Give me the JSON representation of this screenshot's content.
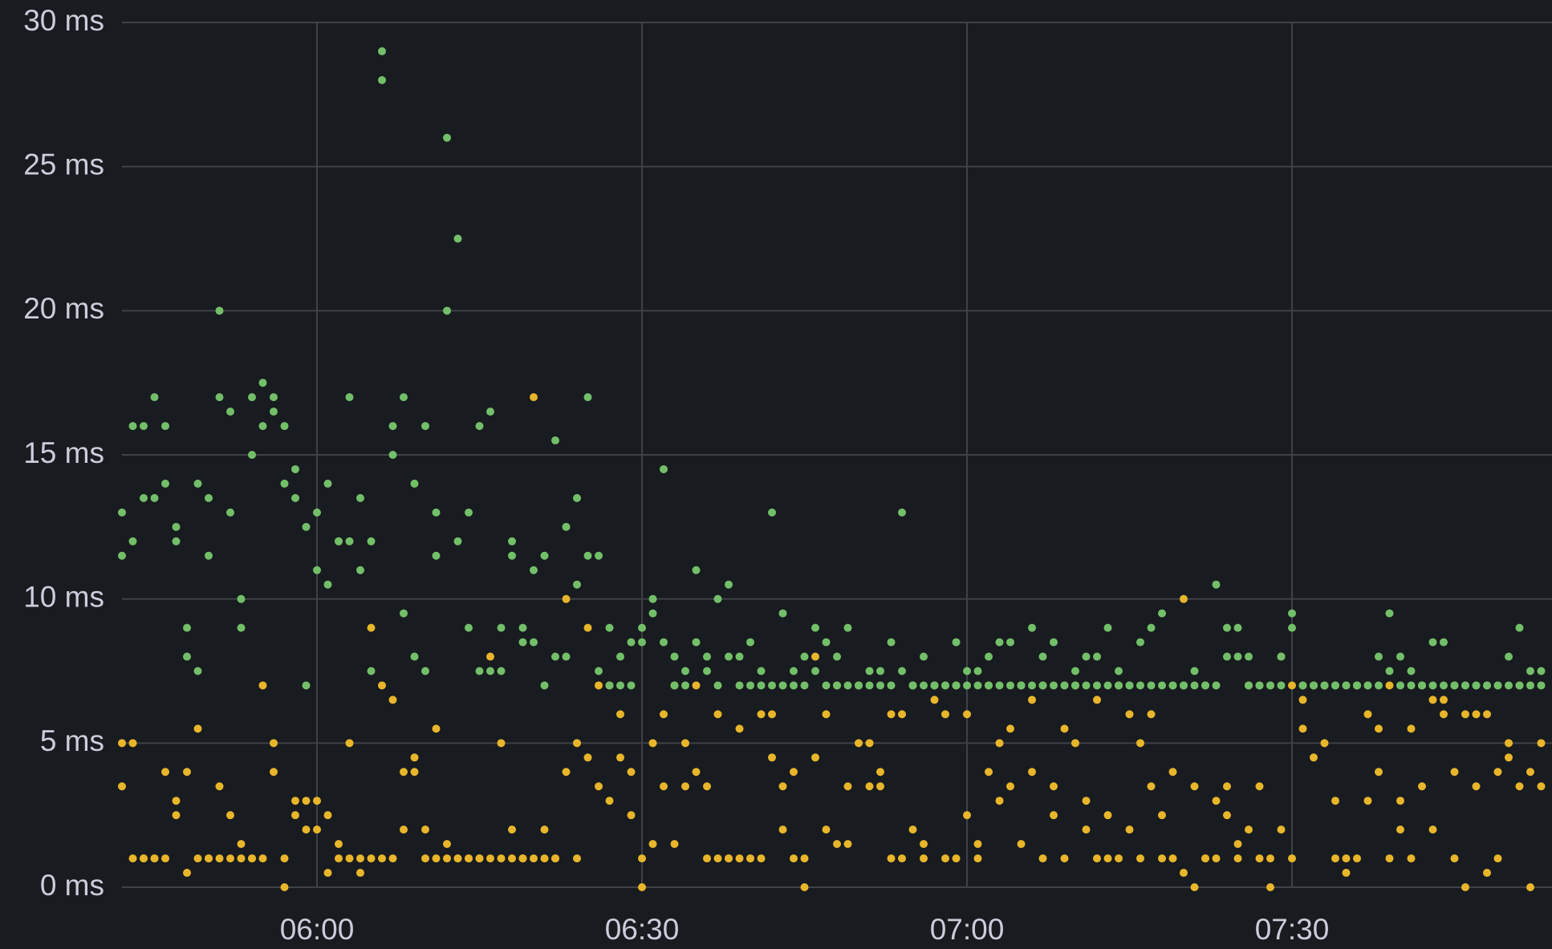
{
  "chart_data": {
    "type": "scatter",
    "xlim": [
      "05:42",
      "07:54"
    ],
    "xticks": [
      "06:00",
      "06:30",
      "07:00",
      "07:30"
    ],
    "ylim": [
      0,
      30
    ],
    "yticks": [
      {
        "value": 0,
        "label": "0 ms"
      },
      {
        "value": 5,
        "label": "5 ms"
      },
      {
        "value": 10,
        "label": "10 ms"
      },
      {
        "value": 15,
        "label": "15 ms"
      },
      {
        "value": 20,
        "label": "20 ms"
      },
      {
        "value": 25,
        "label": "25 ms"
      },
      {
        "value": 30,
        "label": "30 ms"
      }
    ],
    "grid": true,
    "series": [
      {
        "color": "#e8b52b",
        "x": [
          "05:42",
          "05:42",
          "05:43",
          "05:43",
          "05:44",
          "05:44",
          "05:45",
          "05:45",
          "05:46",
          "05:46",
          "05:47",
          "05:47",
          "05:48",
          "05:48",
          "05:49",
          "05:49",
          "05:50",
          "05:50",
          "05:51",
          "05:51",
          "05:52",
          "05:52",
          "05:53",
          "05:53",
          "05:54",
          "05:54",
          "05:55",
          "05:55",
          "05:56",
          "05:56",
          "05:57",
          "05:57",
          "05:58",
          "05:58",
          "05:59",
          "05:59",
          "06:00",
          "06:00",
          "06:01",
          "06:01",
          "06:02",
          "06:02",
          "06:03",
          "06:03",
          "06:04",
          "06:04",
          "06:05",
          "06:05",
          "06:06",
          "06:06",
          "06:07",
          "06:07",
          "06:08",
          "06:08",
          "06:09",
          "06:09",
          "06:10",
          "06:10",
          "06:11",
          "06:11",
          "06:12",
          "06:12",
          "06:13",
          "06:13",
          "06:14",
          "06:14",
          "06:15",
          "06:15",
          "06:16",
          "06:16",
          "06:17",
          "06:17",
          "06:18",
          "06:18",
          "06:19",
          "06:19",
          "06:20",
          "06:20",
          "06:21",
          "06:21",
          "06:22",
          "06:22",
          "06:23",
          "06:23",
          "06:24",
          "06:24",
          "06:25",
          "06:25",
          "06:26",
          "06:26",
          "06:27",
          "06:27",
          "06:28",
          "06:28",
          "06:29",
          "06:29",
          "06:30",
          "06:30",
          "06:31",
          "06:31",
          "06:32",
          "06:32",
          "06:33",
          "06:33",
          "06:34",
          "06:34",
          "06:35",
          "06:35",
          "06:36",
          "06:36",
          "06:37",
          "06:37",
          "06:38",
          "06:38",
          "06:39",
          "06:39",
          "06:40",
          "06:40",
          "06:41",
          "06:41",
          "06:42",
          "06:42",
          "06:43",
          "06:43",
          "06:44",
          "06:44",
          "06:45",
          "06:45",
          "06:46",
          "06:46",
          "06:47",
          "06:47",
          "06:48",
          "06:48",
          "06:49",
          "06:49",
          "06:50",
          "06:50",
          "06:51",
          "06:51",
          "06:52",
          "06:52",
          "06:53",
          "06:53",
          "06:54",
          "06:54",
          "06:55",
          "06:55",
          "06:56",
          "06:56",
          "06:57",
          "06:57",
          "06:58",
          "06:58",
          "06:59",
          "06:59",
          "07:00",
          "07:00",
          "07:01",
          "07:01",
          "07:02",
          "07:02",
          "07:03",
          "07:03",
          "07:04",
          "07:04",
          "07:05",
          "07:05",
          "07:06",
          "07:06",
          "07:07",
          "07:07",
          "07:08",
          "07:08",
          "07:09",
          "07:09",
          "07:10",
          "07:10",
          "07:11",
          "07:11",
          "07:12",
          "07:12",
          "07:13",
          "07:13",
          "07:14",
          "07:14",
          "07:15",
          "07:15",
          "07:16",
          "07:16",
          "07:17",
          "07:17",
          "07:18",
          "07:18",
          "07:19",
          "07:19",
          "07:20",
          "07:20",
          "07:21",
          "07:21",
          "07:22",
          "07:22",
          "07:23",
          "07:23",
          "07:24",
          "07:24",
          "07:25",
          "07:25",
          "07:26",
          "07:26",
          "07:27",
          "07:27",
          "07:28",
          "07:28",
          "07:29",
          "07:29",
          "07:30",
          "07:30",
          "07:31",
          "07:31",
          "07:32",
          "07:32",
          "07:33",
          "07:33",
          "07:34",
          "07:34",
          "07:35",
          "07:35",
          "07:36",
          "07:36",
          "07:37",
          "07:37",
          "07:38",
          "07:38",
          "07:39",
          "07:39",
          "07:40",
          "07:40",
          "07:41",
          "07:41",
          "07:42",
          "07:42",
          "07:43",
          "07:43",
          "07:44",
          "07:44",
          "07:45",
          "07:45",
          "07:46",
          "07:46",
          "07:47",
          "07:47",
          "07:48",
          "07:48",
          "07:49",
          "07:49",
          "07:50",
          "07:50",
          "07:51",
          "07:51",
          "07:52",
          "07:52",
          "07:53",
          "07:53"
        ],
        "values": [
          5,
          3.5,
          5,
          1,
          1,
          1,
          1,
          1,
          4,
          1,
          3,
          2.5,
          0.5,
          4,
          1,
          5.5,
          1,
          1,
          3.5,
          1,
          2.5,
          1,
          1.5,
          1,
          1,
          1,
          7,
          1,
          4,
          5,
          1,
          0,
          3,
          2.5,
          3,
          2,
          2,
          3,
          0.5,
          2.5,
          1.5,
          1,
          5,
          1,
          0.5,
          1,
          1,
          9,
          1,
          7,
          1,
          6.5,
          4,
          2,
          4.5,
          4,
          1,
          2,
          5.5,
          1,
          1.5,
          1,
          1,
          1,
          1,
          1,
          1,
          1,
          1,
          8,
          5,
          1,
          1,
          2,
          1,
          1,
          17,
          1,
          1,
          2,
          1,
          1,
          10,
          4,
          1,
          5,
          9,
          4.5,
          7,
          3.5,
          7,
          3,
          6,
          4.5,
          4,
          2.5,
          0,
          1,
          5,
          1.5,
          6,
          3.5,
          7,
          1.5,
          5,
          3.5,
          7,
          4,
          3.5,
          1,
          6,
          1,
          1,
          1,
          5.5,
          1,
          1,
          1,
          1,
          6,
          4.5,
          6,
          3.5,
          2,
          1,
          4,
          0,
          1,
          8,
          4.5,
          6,
          2,
          7,
          1.5,
          3.5,
          1.5,
          7,
          5,
          5,
          3.5,
          3.5,
          4,
          1,
          6,
          1,
          6,
          7,
          2,
          1,
          1.5,
          6.5,
          7,
          1,
          6,
          7,
          1,
          2.5,
          6,
          1.5,
          1,
          7,
          4,
          5,
          3,
          5.5,
          3.5,
          7,
          1.5,
          6.5,
          4,
          1,
          7,
          3.5,
          2.5,
          1,
          5.5,
          7,
          5,
          2,
          3,
          1,
          6.5,
          1,
          2.5,
          7,
          1,
          6,
          2,
          5,
          1,
          6,
          3.5,
          2.5,
          1,
          4,
          1,
          0.5,
          10,
          0,
          3.5,
          1,
          1,
          3,
          1,
          3.5,
          2.5,
          1,
          1.5,
          7,
          2,
          3.5,
          1,
          1,
          0,
          8,
          2,
          7,
          1,
          6.5,
          5.5,
          4.5,
          7,
          7,
          5,
          1,
          3,
          1,
          0.5,
          7,
          1,
          6,
          3,
          5.5,
          4,
          7,
          1,
          2,
          3,
          1,
          5.5,
          7,
          3.5,
          6.5,
          2,
          6.5,
          6,
          1,
          4,
          0,
          6,
          6,
          3.5,
          6,
          0.5,
          4,
          1,
          5,
          4.5,
          7,
          3.5,
          4,
          0,
          3.5,
          5
        ]
      },
      {
        "color": "#73bf69",
        "x": [
          "05:42",
          "05:42",
          "05:43",
          "05:43",
          "05:44",
          "05:44",
          "05:45",
          "05:45",
          "05:46",
          "05:46",
          "05:47",
          "05:47",
          "05:48",
          "05:48",
          "05:49",
          "05:49",
          "05:50",
          "05:50",
          "05:51",
          "05:51",
          "05:52",
          "05:52",
          "05:53",
          "05:53",
          "05:54",
          "05:54",
          "05:55",
          "05:55",
          "05:56",
          "05:56",
          "05:57",
          "05:57",
          "05:58",
          "05:58",
          "05:59",
          "05:59",
          "06:00",
          "06:00",
          "06:01",
          "06:01",
          "06:02",
          "06:02",
          "06:03",
          "06:03",
          "06:04",
          "06:04",
          "06:05",
          "06:05",
          "06:06",
          "06:06",
          "06:07",
          "06:07",
          "06:08",
          "06:08",
          "06:09",
          "06:09",
          "06:10",
          "06:10",
          "06:11",
          "06:11",
          "06:12",
          "06:12",
          "06:13",
          "06:13",
          "06:14",
          "06:14",
          "06:15",
          "06:15",
          "06:16",
          "06:16",
          "06:17",
          "06:17",
          "06:18",
          "06:18",
          "06:19",
          "06:19",
          "06:20",
          "06:20",
          "06:21",
          "06:21",
          "06:22",
          "06:22",
          "06:23",
          "06:23",
          "06:24",
          "06:24",
          "06:25",
          "06:25",
          "06:26",
          "06:26",
          "06:27",
          "06:27",
          "06:28",
          "06:28",
          "06:29",
          "06:29",
          "06:30",
          "06:30",
          "06:31",
          "06:31",
          "06:32",
          "06:32",
          "06:33",
          "06:33",
          "06:34",
          "06:34",
          "06:35",
          "06:35",
          "06:36",
          "06:36",
          "06:37",
          "06:37",
          "06:38",
          "06:38",
          "06:39",
          "06:39",
          "06:40",
          "06:40",
          "06:41",
          "06:41",
          "06:42",
          "06:42",
          "06:43",
          "06:43",
          "06:44",
          "06:44",
          "06:45",
          "06:45",
          "06:46",
          "06:46",
          "06:47",
          "06:47",
          "06:48",
          "06:48",
          "06:49",
          "06:49",
          "06:50",
          "06:50",
          "06:51",
          "06:51",
          "06:52",
          "06:52",
          "06:53",
          "06:53",
          "06:54",
          "06:54",
          "06:55",
          "06:55",
          "06:56",
          "06:56",
          "06:57",
          "06:57",
          "06:58",
          "06:58",
          "06:59",
          "06:59",
          "07:00",
          "07:00",
          "07:01",
          "07:01",
          "07:02",
          "07:02",
          "07:03",
          "07:03",
          "07:04",
          "07:04",
          "07:05",
          "07:05",
          "07:06",
          "07:06",
          "07:07",
          "07:07",
          "07:08",
          "07:08",
          "07:09",
          "07:09",
          "07:10",
          "07:10",
          "07:11",
          "07:11",
          "07:12",
          "07:12",
          "07:13",
          "07:13",
          "07:14",
          "07:14",
          "07:15",
          "07:15",
          "07:16",
          "07:16",
          "07:17",
          "07:17",
          "07:18",
          "07:18",
          "07:19",
          "07:19",
          "07:20",
          "07:20",
          "07:21",
          "07:21",
          "07:22",
          "07:22",
          "07:23",
          "07:23",
          "07:24",
          "07:24",
          "07:25",
          "07:25",
          "07:26",
          "07:26",
          "07:27",
          "07:27",
          "07:28",
          "07:28",
          "07:29",
          "07:29",
          "07:30",
          "07:30",
          "07:31",
          "07:31",
          "07:32",
          "07:32",
          "07:33",
          "07:33",
          "07:34",
          "07:34",
          "07:35",
          "07:35",
          "07:36",
          "07:36",
          "07:37",
          "07:37",
          "07:38",
          "07:38",
          "07:39",
          "07:39",
          "07:40",
          "07:40",
          "07:41",
          "07:41",
          "07:42",
          "07:42",
          "07:43",
          "07:43",
          "07:44",
          "07:44",
          "07:45",
          "07:45",
          "07:46",
          "07:46",
          "07:47",
          "07:47",
          "07:48",
          "07:48",
          "07:49",
          "07:49",
          "07:50",
          "07:50",
          "07:51",
          "07:51",
          "07:52",
          "07:52",
          "07:53",
          "07:53"
        ],
        "values": [
          13,
          11.5,
          12,
          16,
          13.5,
          16,
          17,
          13.5,
          14,
          16,
          12.5,
          12,
          9,
          8,
          14,
          7.5,
          13.5,
          11.5,
          20,
          17,
          16.5,
          13,
          10,
          9,
          15,
          17,
          17.5,
          16,
          17,
          16.5,
          16,
          14,
          13.5,
          14.5,
          12.5,
          7,
          13,
          11,
          10.5,
          14,
          12,
          12,
          17,
          12,
          13.5,
          11,
          12,
          7.5,
          29,
          28,
          15,
          16,
          17,
          9.5,
          14,
          8,
          7.5,
          16,
          13,
          11.5,
          26,
          20,
          22.5,
          12,
          13,
          9,
          7.5,
          16,
          16.5,
          7.5,
          9,
          7.5,
          12,
          11.5,
          9,
          8.5,
          8.5,
          11,
          11.5,
          7,
          15.5,
          8,
          12.5,
          8,
          13.5,
          10.5,
          17,
          11.5,
          11.5,
          7.5,
          7,
          9,
          7,
          8,
          7,
          8.5,
          8.5,
          9,
          10,
          9.5,
          14.5,
          8.5,
          7,
          8,
          7.5,
          7,
          11,
          8.5,
          7.5,
          8,
          10,
          7,
          10.5,
          8,
          8,
          7,
          8.5,
          7,
          7,
          7.5,
          13,
          7,
          9.5,
          7,
          7.5,
          7,
          8,
          7,
          9,
          7.5,
          8.5,
          7,
          8,
          7,
          9,
          7,
          7,
          7,
          7,
          7.5,
          7,
          7.5,
          8.5,
          7,
          13,
          7.5,
          7,
          7,
          8,
          7,
          7,
          7,
          7,
          7,
          8.5,
          7,
          7,
          7.5,
          7.5,
          7,
          8,
          7,
          8.5,
          7,
          7,
          8.5,
          7,
          7,
          7,
          9,
          7,
          8,
          8.5,
          7,
          7,
          7,
          7.5,
          7,
          8,
          7,
          7,
          8,
          9,
          7,
          7.5,
          7,
          7,
          7,
          8.5,
          7,
          9,
          7,
          9.5,
          7,
          7,
          7,
          7,
          7,
          7,
          7.5,
          7,
          7,
          10.5,
          7,
          8,
          9,
          8,
          9,
          8,
          7,
          7,
          7,
          7,
          7,
          8,
          7,
          9.5,
          9,
          7,
          7,
          7,
          7,
          7,
          7,
          7,
          7,
          7,
          7,
          7,
          7,
          7,
          7,
          8,
          7,
          9.5,
          7.5,
          7,
          8,
          7,
          7.5,
          7,
          7,
          8.5,
          7,
          7,
          8.5,
          7,
          7,
          7,
          7,
          7,
          7,
          7,
          7,
          7,
          7,
          8,
          7,
          9,
          7,
          7.5,
          7,
          7.5,
          7
        ]
      }
    ]
  }
}
